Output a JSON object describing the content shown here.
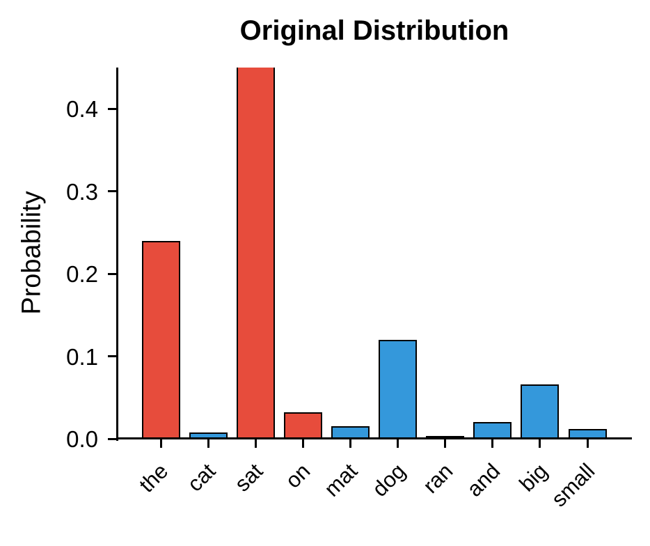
{
  "chart_data": {
    "type": "bar",
    "title": "Original Distribution",
    "ylabel": "Probability",
    "xlabel": "",
    "categories": [
      "the",
      "cat",
      "sat",
      "on",
      "mat",
      "dog",
      "ran",
      "and",
      "big",
      "small"
    ],
    "values": [
      0.24,
      0.008,
      0.45,
      0.032,
      0.015,
      0.12,
      0.003,
      0.02,
      0.066,
      0.012
    ],
    "bar_colors": [
      "#e74c3c",
      "#3498db",
      "#e74c3c",
      "#e74c3c",
      "#3498db",
      "#3498db",
      "#3498db",
      "#3498db",
      "#3498db",
      "#3498db"
    ],
    "palette": {
      "red": "#e74c3c",
      "blue": "#3498db",
      "edge": "#000000",
      "axis": "#000000",
      "text": "#000000",
      "background": "#ffffff"
    },
    "ylim": [
      0,
      0.45
    ],
    "ytick_values": [
      0.0,
      0.1,
      0.2,
      0.3,
      0.4
    ],
    "ytick_labels": [
      "0.0",
      "0.1",
      "0.2",
      "0.3",
      "0.4"
    ],
    "xtick_rotation_deg": 45,
    "grid": false,
    "legend": false,
    "spines": [
      "left",
      "bottom"
    ]
  }
}
